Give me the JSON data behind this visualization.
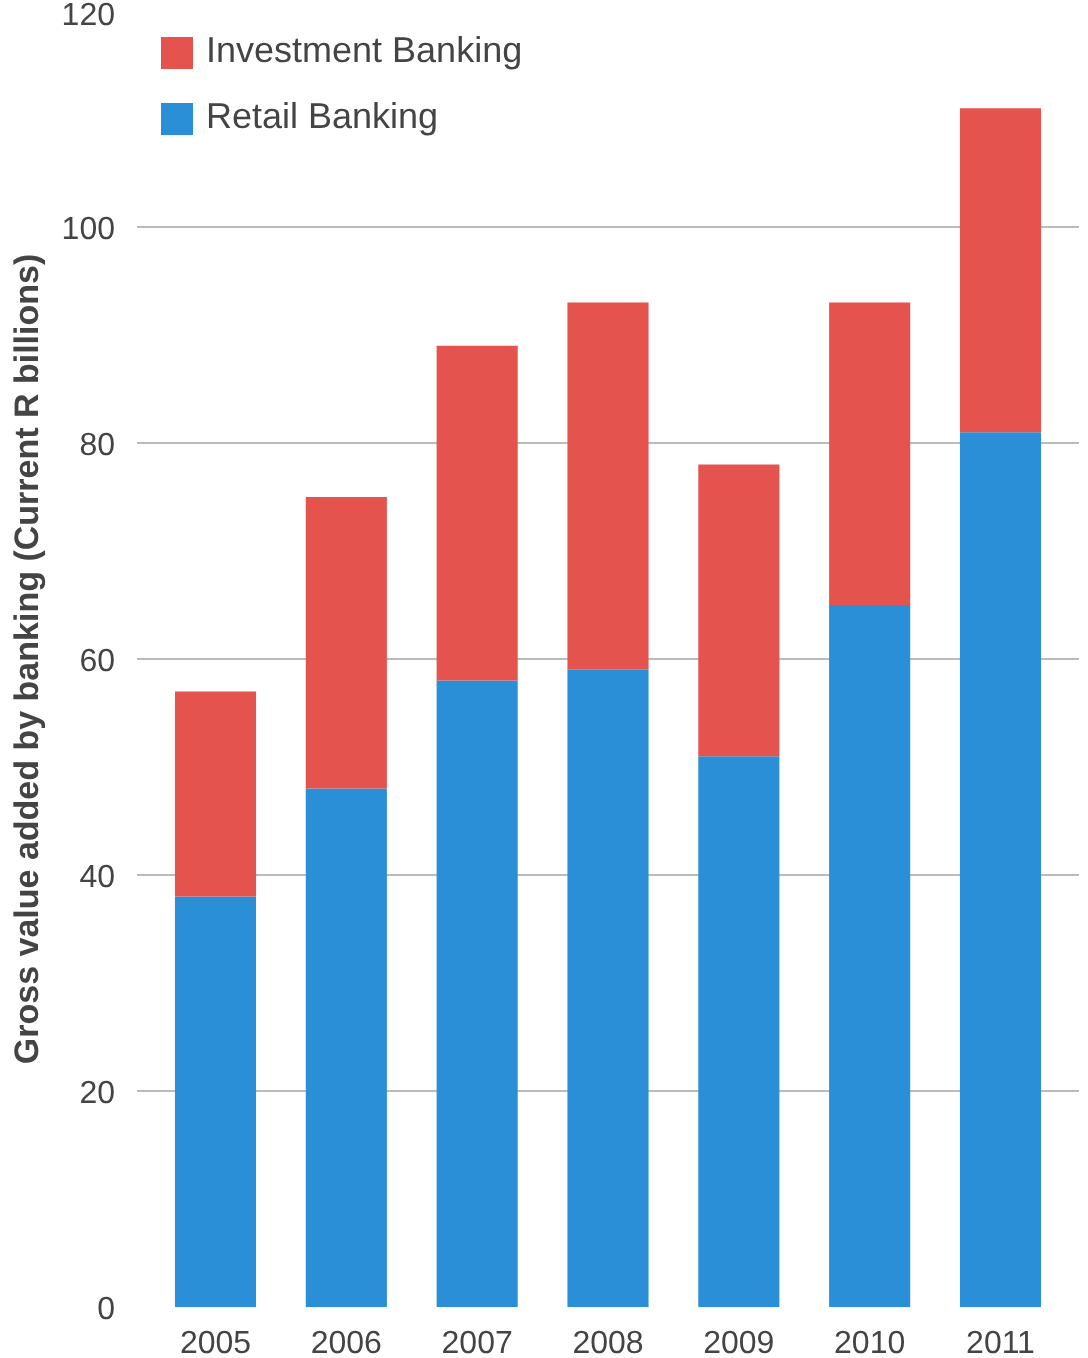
{
  "chart_data": {
    "type": "bar",
    "stacked": true,
    "ylabel": "Gross value added by banking (Current R billions)",
    "categories": [
      "2005",
      "2006",
      "2007",
      "2008",
      "2009",
      "2010",
      "2011"
    ],
    "series": [
      {
        "name": "Retail Banking",
        "color": "#2a8fd6",
        "values": [
          38,
          48,
          58,
          59,
          51,
          65,
          81
        ]
      },
      {
        "name": "Investment Banking",
        "color": "#e5534e",
        "values": [
          19,
          27,
          31,
          34,
          27,
          28,
          30
        ]
      }
    ],
    "ylim": [
      0,
      120
    ],
    "yticks": [
      0,
      20,
      40,
      60,
      80,
      100,
      120
    ],
    "grid": "y",
    "legend": "top left"
  }
}
